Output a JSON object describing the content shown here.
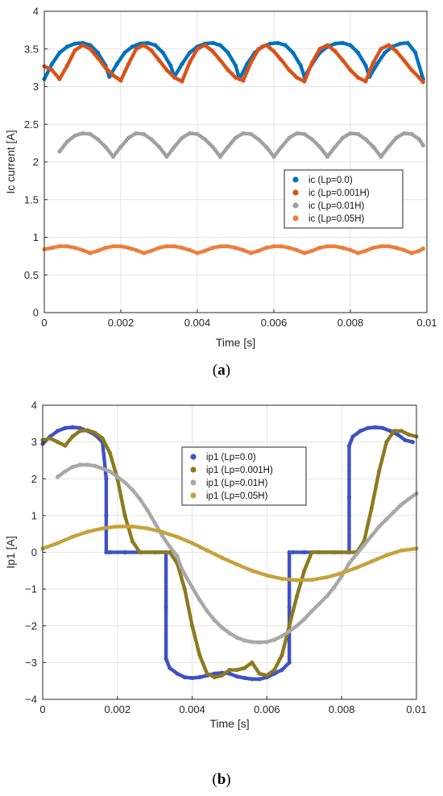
{
  "chart_data": [
    {
      "type": "scatter",
      "caption_letter": "a",
      "xlabel": "Time [s]",
      "ylabel": "Ic current [A]",
      "xlim": [
        0,
        0.01
      ],
      "ylim": [
        0,
        4
      ],
      "xticks": [
        0,
        0.002,
        0.004,
        0.006,
        0.008,
        0.01
      ],
      "xtick_labels": [
        "0",
        "0.002",
        "0.004",
        "0.006",
        "0.008",
        "0.01"
      ],
      "yticks": [
        0,
        0.5,
        1,
        1.5,
        2,
        2.5,
        3,
        3.5,
        4
      ],
      "ytick_labels": [
        "0",
        "0.5",
        "1",
        "1.5",
        "2",
        "2.5",
        "3",
        "3.5",
        "4"
      ],
      "grid": true,
      "legend_position": "center-right",
      "series": [
        {
          "name": "ic (Lp=0.0)",
          "color": "#0072BD",
          "x": [
            0,
            0.0002,
            0.0004,
            0.0006,
            0.0008,
            0.001,
            0.0012,
            0.0014,
            0.0016,
            0.0017,
            0.0019,
            0.0021,
            0.0023,
            0.0025,
            0.0027,
            0.0029,
            0.0031,
            0.0033,
            0.0034,
            0.0036,
            0.0038,
            0.004,
            0.0042,
            0.0044,
            0.0046,
            0.0048,
            0.005,
            0.0051,
            0.0053,
            0.0055,
            0.0057,
            0.0059,
            0.0061,
            0.0063,
            0.0065,
            0.0067,
            0.0068,
            0.007,
            0.0072,
            0.0074,
            0.0076,
            0.0078,
            0.008,
            0.0082,
            0.0084,
            0.0085,
            0.0087,
            0.0089,
            0.0091,
            0.0093,
            0.0095,
            0.0097,
            0.0099
          ],
          "y": [
            3.1,
            3.3,
            3.45,
            3.53,
            3.57,
            3.58,
            3.55,
            3.45,
            3.28,
            3.13,
            3.3,
            3.45,
            3.53,
            3.57,
            3.58,
            3.55,
            3.45,
            3.28,
            3.13,
            3.3,
            3.45,
            3.53,
            3.57,
            3.58,
            3.55,
            3.45,
            3.28,
            3.1,
            3.3,
            3.45,
            3.53,
            3.57,
            3.58,
            3.55,
            3.45,
            3.28,
            3.13,
            3.3,
            3.45,
            3.53,
            3.57,
            3.58,
            3.55,
            3.45,
            3.28,
            3.13,
            3.3,
            3.45,
            3.53,
            3.57,
            3.58,
            3.45,
            3.1
          ]
        },
        {
          "name": "ic (Lp=0.001H)",
          "color": "#D95319",
          "x": [
            0,
            0.0002,
            0.0004,
            0.0006,
            0.0008,
            0.001,
            0.0012,
            0.0014,
            0.0016,
            0.0018,
            0.002,
            0.0022,
            0.0024,
            0.0026,
            0.0028,
            0.003,
            0.0032,
            0.0034,
            0.0036,
            0.0038,
            0.004,
            0.0042,
            0.0044,
            0.0046,
            0.0048,
            0.005,
            0.0052,
            0.0054,
            0.0056,
            0.0058,
            0.006,
            0.0062,
            0.0064,
            0.0066,
            0.0068,
            0.007,
            0.0072,
            0.0074,
            0.0076,
            0.0078,
            0.008,
            0.0082,
            0.0084,
            0.0086,
            0.0088,
            0.009,
            0.0092,
            0.0094,
            0.0096,
            0.0098,
            0.0099
          ],
          "y": [
            3.27,
            3.22,
            3.1,
            3.28,
            3.48,
            3.55,
            3.5,
            3.38,
            3.25,
            3.15,
            3.08,
            3.3,
            3.5,
            3.55,
            3.48,
            3.35,
            3.22,
            3.12,
            3.07,
            3.32,
            3.5,
            3.55,
            3.47,
            3.35,
            3.22,
            3.12,
            3.08,
            3.32,
            3.5,
            3.55,
            3.47,
            3.35,
            3.22,
            3.12,
            3.07,
            3.32,
            3.5,
            3.55,
            3.47,
            3.35,
            3.22,
            3.12,
            3.07,
            3.32,
            3.5,
            3.55,
            3.47,
            3.35,
            3.22,
            3.12,
            3.06
          ]
        },
        {
          "name": "ic (Lp=0.01H)",
          "color": "#A0A0A0",
          "x": [
            0.0004,
            0.0006,
            0.0008,
            0.001,
            0.0012,
            0.0014,
            0.0016,
            0.0018,
            0.002,
            0.0022,
            0.0024,
            0.0026,
            0.0028,
            0.003,
            0.0032,
            0.0034,
            0.0036,
            0.0038,
            0.004,
            0.0042,
            0.0044,
            0.0046,
            0.0048,
            0.005,
            0.0052,
            0.0054,
            0.0056,
            0.0058,
            0.006,
            0.0062,
            0.0064,
            0.0066,
            0.0068,
            0.007,
            0.0072,
            0.0074,
            0.0076,
            0.0078,
            0.008,
            0.0082,
            0.0084,
            0.0086,
            0.0088,
            0.009,
            0.0092,
            0.0094,
            0.0096,
            0.0098,
            0.0099
          ],
          "y": [
            2.14,
            2.27,
            2.35,
            2.38,
            2.37,
            2.3,
            2.2,
            2.07,
            2.2,
            2.32,
            2.38,
            2.37,
            2.3,
            2.2,
            2.07,
            2.2,
            2.32,
            2.38,
            2.37,
            2.3,
            2.2,
            2.07,
            2.2,
            2.32,
            2.38,
            2.37,
            2.3,
            2.2,
            2.07,
            2.2,
            2.32,
            2.38,
            2.37,
            2.3,
            2.2,
            2.07,
            2.2,
            2.32,
            2.38,
            2.37,
            2.3,
            2.2,
            2.07,
            2.2,
            2.32,
            2.38,
            2.37,
            2.3,
            2.22
          ]
        },
        {
          "name": "ic (Lp=0.05H)",
          "color": "#EE7D3B",
          "x": [
            0,
            0.0002,
            0.0004,
            0.0006,
            0.0008,
            0.001,
            0.0012,
            0.0014,
            0.0016,
            0.0018,
            0.002,
            0.0022,
            0.0024,
            0.0026,
            0.0028,
            0.003,
            0.0032,
            0.0034,
            0.0036,
            0.0038,
            0.004,
            0.0042,
            0.0044,
            0.0046,
            0.0048,
            0.005,
            0.0052,
            0.0054,
            0.0056,
            0.0058,
            0.006,
            0.0062,
            0.0064,
            0.0066,
            0.0068,
            0.007,
            0.0072,
            0.0074,
            0.0076,
            0.0078,
            0.008,
            0.0082,
            0.0084,
            0.0086,
            0.0088,
            0.009,
            0.0092,
            0.0094,
            0.0096,
            0.0098,
            0.0099
          ],
          "y": [
            0.84,
            0.86,
            0.88,
            0.88,
            0.86,
            0.83,
            0.79,
            0.82,
            0.86,
            0.88,
            0.88,
            0.86,
            0.83,
            0.79,
            0.82,
            0.86,
            0.88,
            0.88,
            0.86,
            0.83,
            0.79,
            0.82,
            0.86,
            0.88,
            0.88,
            0.86,
            0.83,
            0.79,
            0.82,
            0.86,
            0.88,
            0.88,
            0.86,
            0.83,
            0.79,
            0.82,
            0.86,
            0.88,
            0.88,
            0.86,
            0.83,
            0.79,
            0.82,
            0.86,
            0.88,
            0.88,
            0.86,
            0.83,
            0.79,
            0.82,
            0.85
          ]
        }
      ]
    },
    {
      "type": "scatter",
      "caption_letter": "b",
      "xlabel": "Time [s]",
      "ylabel": "Ip1 [A]",
      "xlim": [
        0,
        0.01
      ],
      "ylim": [
        -4,
        4
      ],
      "xticks": [
        0,
        0.002,
        0.004,
        0.006,
        0.008,
        0.01
      ],
      "xtick_labels": [
        "0",
        "0.002",
        "0.004",
        "0.006",
        "0.008",
        "0.01"
      ],
      "yticks": [
        -4,
        -3,
        -2,
        -1,
        0,
        1,
        2,
        3,
        4
      ],
      "ytick_labels": [
        "−4",
        "−3",
        "−2",
        "−1",
        "0",
        "1",
        "2",
        "3",
        "4"
      ],
      "grid": true,
      "legend_position": "top-center",
      "series": [
        {
          "name": "ip1 (Lp=0.0)",
          "color": "#3F51C4",
          "x": [
            0,
            0.0002,
            0.0004,
            0.0006,
            0.0008,
            0.001,
            0.0012,
            0.0014,
            0.0016,
            0.0017,
            0.0017,
            0.0017,
            0.0018,
            0.0022,
            0.0026,
            0.003,
            0.0033,
            0.0033,
            0.0033,
            0.0034,
            0.0036,
            0.0038,
            0.004,
            0.0042,
            0.0044,
            0.0046,
            0.0048,
            0.005,
            0.0052,
            0.0054,
            0.0056,
            0.0058,
            0.006,
            0.0062,
            0.0064,
            0.0066,
            0.0066,
            0.0066,
            0.0067,
            0.007,
            0.0074,
            0.0078,
            0.0082,
            0.0082,
            0.0082,
            0.0083,
            0.0085,
            0.0087,
            0.0089,
            0.0091,
            0.0093,
            0.0095,
            0.0097,
            0.0099
          ],
          "y": [
            2.95,
            3.15,
            3.3,
            3.38,
            3.4,
            3.38,
            3.3,
            3.2,
            3.0,
            2.0,
            1.0,
            0.0,
            0.0,
            0.0,
            0.0,
            0.0,
            0.0,
            -1.5,
            -2.9,
            -3.15,
            -3.3,
            -3.4,
            -3.42,
            -3.4,
            -3.35,
            -3.3,
            -3.28,
            -3.3,
            -3.38,
            -3.42,
            -3.45,
            -3.45,
            -3.4,
            -3.3,
            -3.2,
            -3.0,
            -1.5,
            0.0,
            0.0,
            0.0,
            0.0,
            0.0,
            0.0,
            1.5,
            2.9,
            3.15,
            3.3,
            3.38,
            3.4,
            3.38,
            3.3,
            3.2,
            3.05,
            3.0
          ]
        },
        {
          "name": "ip1 (Lp=0.001H)",
          "color": "#8C7A1E",
          "x": [
            0,
            0.0002,
            0.0004,
            0.0006,
            0.0008,
            0.001,
            0.0012,
            0.0014,
            0.0016,
            0.0018,
            0.002,
            0.0022,
            0.0024,
            0.0026,
            0.003,
            0.0034,
            0.0036,
            0.0038,
            0.004,
            0.0042,
            0.0044,
            0.0046,
            0.0048,
            0.005,
            0.0052,
            0.0054,
            0.0056,
            0.0058,
            0.006,
            0.0062,
            0.0064,
            0.0066,
            0.0068,
            0.007,
            0.0072,
            0.0074,
            0.0078,
            0.0082,
            0.0084,
            0.0086,
            0.0088,
            0.009,
            0.0092,
            0.0094,
            0.0096,
            0.0098,
            0.01
          ],
          "y": [
            3.05,
            3.1,
            3.0,
            2.9,
            3.15,
            3.3,
            3.32,
            3.25,
            3.1,
            2.7,
            2.0,
            1.0,
            0.3,
            0.0,
            0.0,
            0.0,
            -0.3,
            -1.0,
            -2.0,
            -2.8,
            -3.3,
            -3.4,
            -3.35,
            -3.2,
            -3.2,
            -3.15,
            -3.0,
            -3.3,
            -3.35,
            -3.2,
            -2.8,
            -2.0,
            -1.2,
            -0.5,
            0.0,
            0.0,
            0.0,
            0.0,
            0.0,
            0.3,
            1.2,
            2.2,
            3.0,
            3.3,
            3.3,
            3.2,
            3.15
          ]
        },
        {
          "name": "ip1 (Lp=0.01H)",
          "color": "#A8A8A8",
          "x": [
            0.0004,
            0.0006,
            0.0008,
            0.001,
            0.0012,
            0.0014,
            0.0016,
            0.0018,
            0.002,
            0.0022,
            0.0024,
            0.0026,
            0.0028,
            0.003,
            0.0032,
            0.0034,
            0.0036,
            0.0037,
            0.0038,
            0.004,
            0.0042,
            0.0044,
            0.0046,
            0.0048,
            0.005,
            0.0052,
            0.0054,
            0.0056,
            0.0058,
            0.006,
            0.0062,
            0.0064,
            0.0066,
            0.0068,
            0.007,
            0.0072,
            0.0074,
            0.0076,
            0.0078,
            0.008,
            0.0082,
            0.0084,
            0.0086,
            0.0088,
            0.009,
            0.0092,
            0.0094,
            0.0096,
            0.0098,
            0.01
          ],
          "y": [
            2.05,
            2.2,
            2.32,
            2.38,
            2.38,
            2.35,
            2.28,
            2.2,
            2.05,
            1.9,
            1.7,
            1.45,
            1.15,
            0.8,
            0.45,
            0.15,
            -0.1,
            -0.4,
            -0.6,
            -0.95,
            -1.3,
            -1.6,
            -1.85,
            -2.05,
            -2.2,
            -2.32,
            -2.4,
            -2.44,
            -2.45,
            -2.44,
            -2.38,
            -2.28,
            -2.15,
            -2.0,
            -1.82,
            -1.6,
            -1.4,
            -1.2,
            -0.95,
            -0.65,
            -0.3,
            -0.05,
            0.2,
            0.45,
            0.7,
            0.9,
            1.1,
            1.3,
            1.45,
            1.6
          ]
        },
        {
          "name": "ip1 (Lp=0.05H)",
          "color": "#C6A23A",
          "x": [
            0,
            0.0004,
            0.0008,
            0.0012,
            0.0016,
            0.002,
            0.0024,
            0.0028,
            0.0032,
            0.0036,
            0.004,
            0.0044,
            0.0048,
            0.0052,
            0.0056,
            0.006,
            0.0064,
            0.0068,
            0.0072,
            0.0076,
            0.008,
            0.0084,
            0.0088,
            0.0092,
            0.0096,
            0.01
          ],
          "y": [
            0.1,
            0.25,
            0.42,
            0.56,
            0.65,
            0.7,
            0.7,
            0.65,
            0.55,
            0.42,
            0.25,
            0.05,
            -0.15,
            -0.33,
            -0.5,
            -0.63,
            -0.72,
            -0.76,
            -0.75,
            -0.68,
            -0.57,
            -0.42,
            -0.25,
            -0.08,
            0.05,
            0.1
          ]
        }
      ]
    }
  ]
}
